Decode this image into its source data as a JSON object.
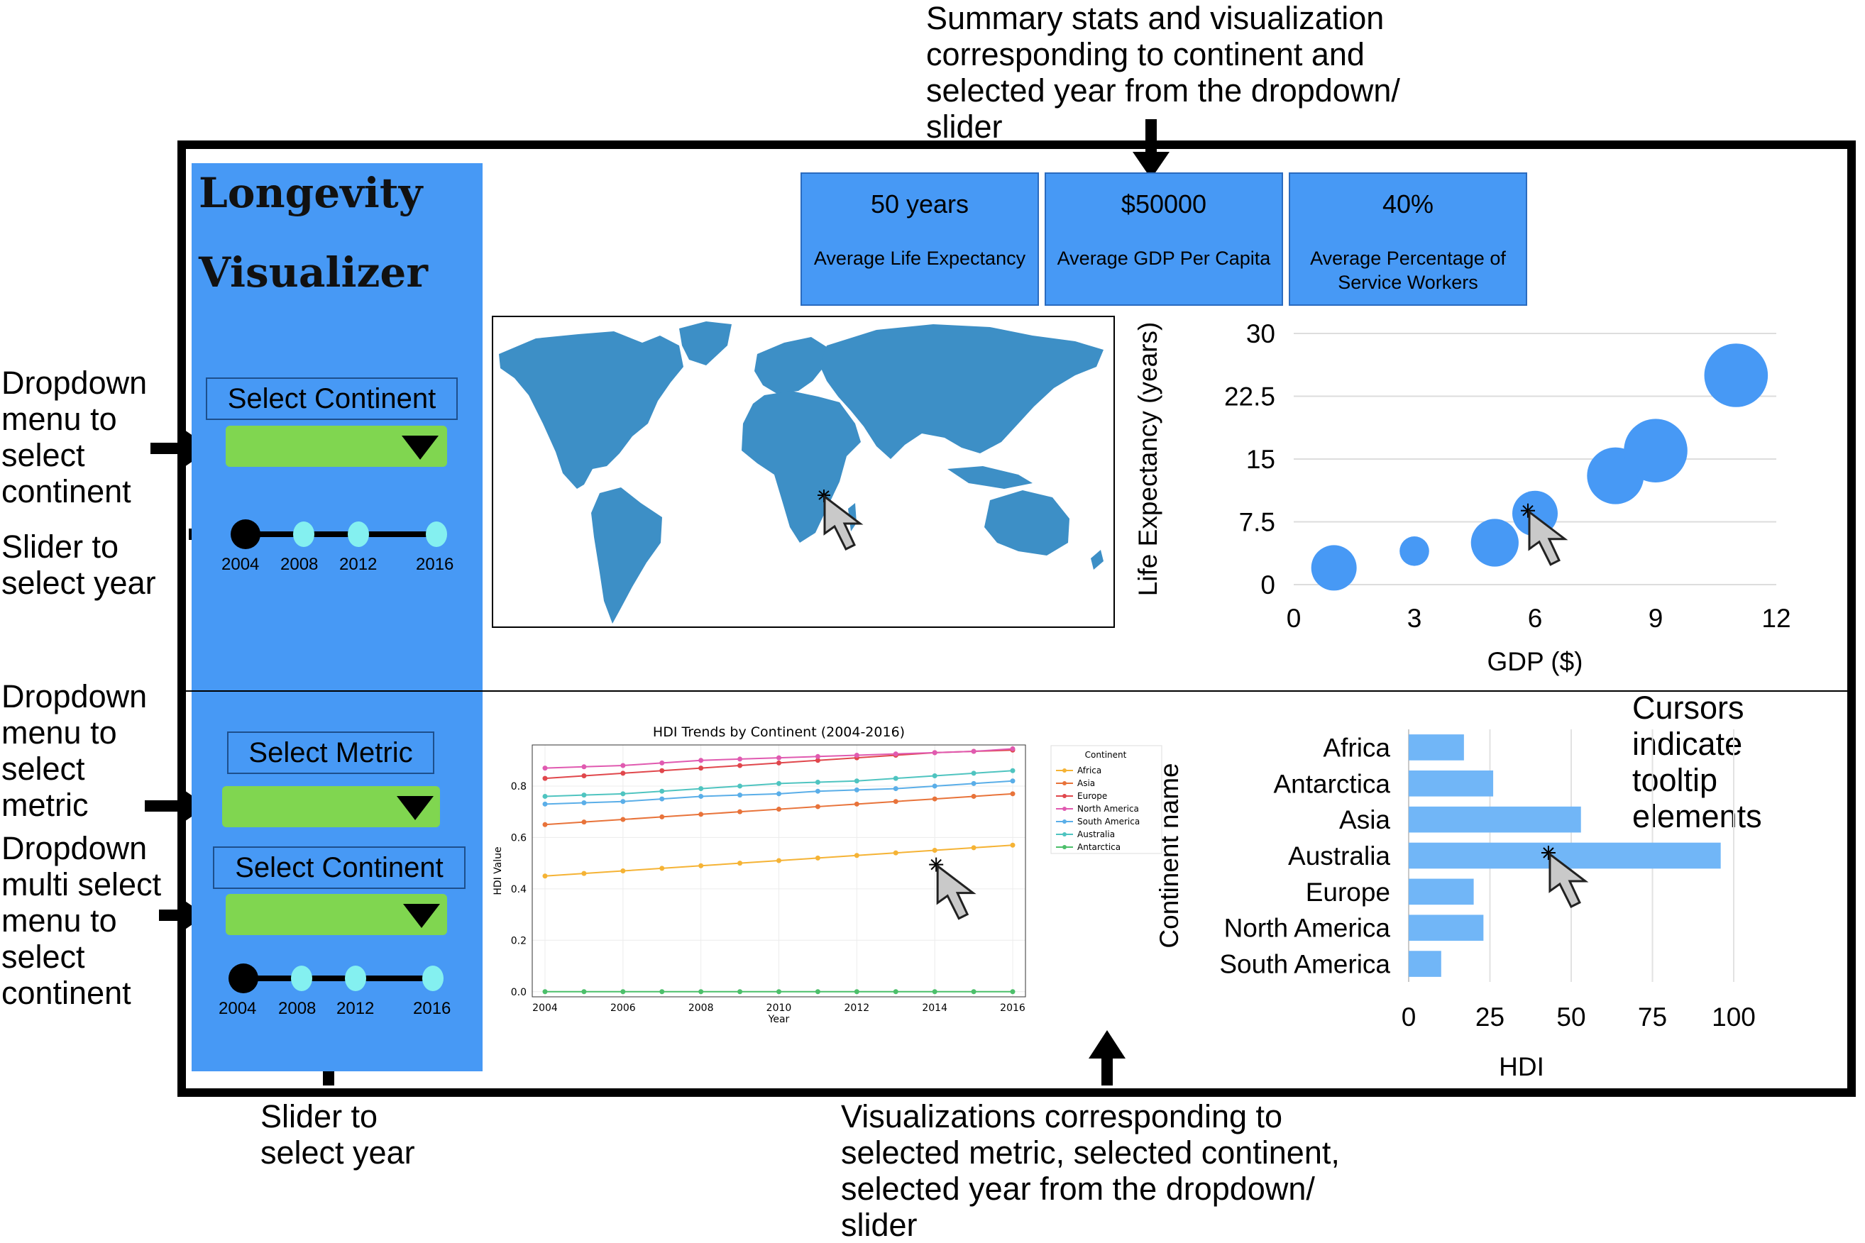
{
  "annotations": {
    "top_summary": [
      "Summary stats and visualization",
      "corresponding to continent and",
      "selected year from the dropdown/",
      "slider"
    ],
    "left_dropdown_continent": [
      "Dropdown",
      "menu to",
      "select",
      "continent"
    ],
    "left_slider_year": [
      "Slider to",
      "select year"
    ],
    "left_dropdown_metric": [
      "Dropdown",
      "menu to",
      "select",
      "metric"
    ],
    "left_dropdown_multi": [
      "Dropdown",
      "multi select",
      "menu to",
      "select",
      "continent"
    ],
    "bottom_slider": [
      "Slider to",
      "select year"
    ],
    "bottom_visualizations": [
      "Visualizations corresponding to",
      "selected metric, selected continent,",
      "selected year from the dropdown/",
      "slider"
    ],
    "cursors_note": [
      "Cursors",
      "indicate",
      "tooltip",
      "elements"
    ]
  },
  "app": {
    "title_line1": "Longevity",
    "title_line2": "Visualizer"
  },
  "controls_top": {
    "continent_label": "Select Continent",
    "slider_ticks": [
      "2004",
      "2008",
      "2012",
      "2016"
    ]
  },
  "controls_bottom": {
    "metric_label": "Select Metric",
    "continent_label": "Select Continent",
    "slider_ticks": [
      "2004",
      "2008",
      "2012",
      "2016"
    ]
  },
  "cards": [
    {
      "value": "50 years",
      "label": "Average Life Expectancy"
    },
    {
      "value": "$50000",
      "label": "Average GDP Per Capita"
    },
    {
      "value": "40%",
      "label": "Average Percentage of Service Workers"
    }
  ],
  "colors": {
    "panel_blue": "#4799f5",
    "dropdown_green": "#80d650",
    "knob_cyan": "#84f0f0",
    "map_blue": "#3d8fc6",
    "bar_blue": "#71b6f7"
  },
  "chart_data": [
    {
      "type": "scatter",
      "title": "",
      "xlabel": "GDP ($)",
      "ylabel": "Life Expectancy (years)",
      "xlim": [
        0,
        12
      ],
      "ylim": [
        0,
        30
      ],
      "x_ticks": [
        "0",
        "3",
        "6",
        "9",
        "12"
      ],
      "y_ticks": [
        "0",
        "7.5",
        "15",
        "22.5",
        "30"
      ],
      "grid": true,
      "points": [
        {
          "x": 1,
          "y": 2,
          "size": 2
        },
        {
          "x": 3,
          "y": 4,
          "size": 1.3
        },
        {
          "x": 5,
          "y": 5,
          "size": 2.1
        },
        {
          "x": 6,
          "y": 8.5,
          "size": 2
        },
        {
          "x": 8,
          "y": 13,
          "size": 2.5
        },
        {
          "x": 9,
          "y": 16,
          "size": 2.8
        },
        {
          "x": 11,
          "y": 25,
          "size": 2.8
        }
      ]
    },
    {
      "type": "line",
      "title": "HDI Trends by Continent (2004-2016)",
      "xlabel": "Year",
      "ylabel": "HDI Value",
      "x": [
        2004,
        2005,
        2006,
        2007,
        2008,
        2009,
        2010,
        2011,
        2012,
        2013,
        2014,
        2015,
        2016
      ],
      "x_ticks": [
        "2004",
        "2006",
        "2008",
        "2010",
        "2012",
        "2014",
        "2016"
      ],
      "y_ticks": [
        "0.0",
        "0.2",
        "0.4",
        "0.6",
        "0.8"
      ],
      "ylim": [
        -0.02,
        0.96
      ],
      "legend_title": "Continent",
      "legend_position": "right",
      "series": [
        {
          "name": "Africa",
          "color": "#f5b335",
          "values": [
            0.45,
            0.46,
            0.47,
            0.48,
            0.49,
            0.5,
            0.51,
            0.52,
            0.53,
            0.54,
            0.55,
            0.56,
            0.57
          ]
        },
        {
          "name": "Asia",
          "color": "#e8733a",
          "values": [
            0.65,
            0.66,
            0.67,
            0.68,
            0.69,
            0.7,
            0.71,
            0.72,
            0.73,
            0.74,
            0.75,
            0.76,
            0.77
          ]
        },
        {
          "name": "Europe",
          "color": "#e0474c",
          "values": [
            0.83,
            0.84,
            0.85,
            0.86,
            0.87,
            0.88,
            0.89,
            0.9,
            0.91,
            0.92,
            0.93,
            0.935,
            0.94
          ]
        },
        {
          "name": "North America",
          "color": "#e05ab0",
          "values": [
            0.87,
            0.875,
            0.88,
            0.89,
            0.9,
            0.905,
            0.91,
            0.915,
            0.92,
            0.925,
            0.93,
            0.935,
            0.945
          ]
        },
        {
          "name": "South America",
          "color": "#5aaee8",
          "values": [
            0.73,
            0.735,
            0.74,
            0.75,
            0.76,
            0.765,
            0.77,
            0.78,
            0.785,
            0.79,
            0.8,
            0.81,
            0.82
          ]
        },
        {
          "name": "Australia",
          "color": "#4fc4c0",
          "values": [
            0.76,
            0.765,
            0.77,
            0.78,
            0.79,
            0.8,
            0.81,
            0.815,
            0.82,
            0.83,
            0.84,
            0.85,
            0.86
          ]
        },
        {
          "name": "Antarctica",
          "color": "#4cbf6a",
          "values": [
            0,
            0,
            0,
            0,
            0,
            0,
            0,
            0,
            0,
            0,
            0,
            0,
            0
          ]
        }
      ]
    },
    {
      "type": "bar",
      "orientation": "horizontal",
      "title": "",
      "xlabel": "HDI",
      "ylabel": "Continent name",
      "xlim": [
        0,
        100
      ],
      "x_ticks": [
        "0",
        "25",
        "50",
        "75",
        "100"
      ],
      "categories": [
        "Africa",
        "Antarctica",
        "Asia",
        "Australia",
        "Europe",
        "North America",
        "South America"
      ],
      "values": [
        17,
        26,
        53,
        96,
        20,
        23,
        10
      ]
    }
  ]
}
